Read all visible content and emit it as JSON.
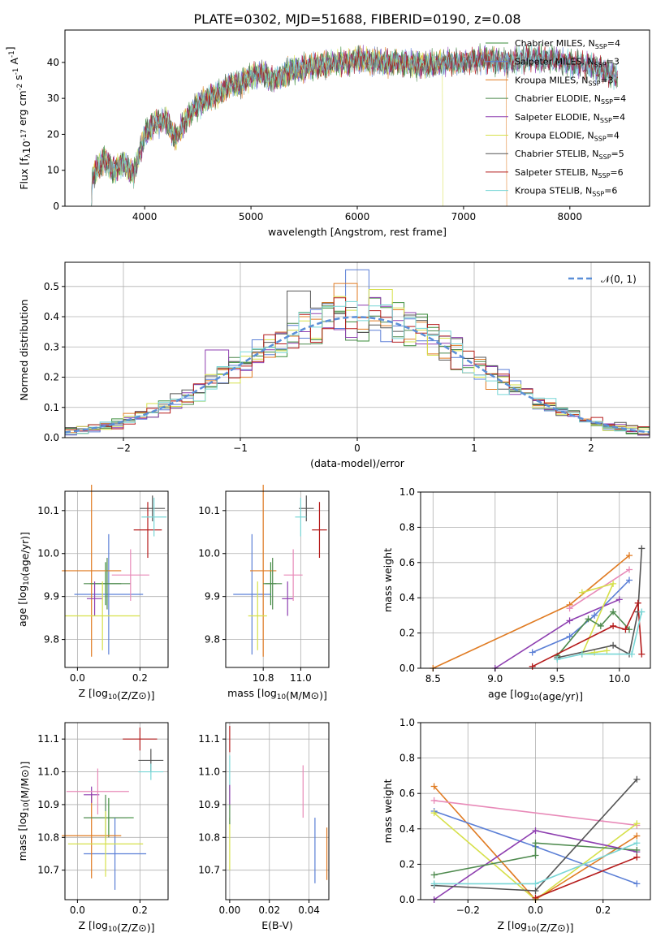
{
  "figure_title": "PLATE=0302, MJD=51688, FIBERID=0190, z=0.08",
  "colors": {
    "Chabrier MILES": "#3a8c3a",
    "Salpeter MILES": "#5b7fd6",
    "Kroupa MILES": "#e07b22",
    "Chabrier ELODIE": "#4e8a4e",
    "Salpeter ELODIE": "#8e3fb0",
    "Kroupa ELODIE": "#d6e04a",
    "Chabrier STELIB": "#555555",
    "Salpeter STELIB": "#b51b1b",
    "Kroupa STELIB": "#78d6d6",
    "gaussian": "#5b8fd8"
  },
  "chart_data": [
    {
      "id": "spectrum",
      "type": "line",
      "xlabel": "wavelength [Angstrom, rest frame]",
      "ylabel": "Flux [f_λ10^-17 erg cm^-2 s^-1 A^-1]",
      "xlim": [
        3250,
        8750
      ],
      "ylim": [
        0,
        49
      ],
      "xticks": [
        4000,
        5000,
        6000,
        7000,
        8000
      ],
      "yticks": [
        0,
        10,
        20,
        30,
        40
      ],
      "grid": false,
      "legend_position": "right",
      "x_range_data": [
        3500,
        8450
      ],
      "anchors": [
        [
          3500,
          8
        ],
        [
          3620,
          13
        ],
        [
          3700,
          10
        ],
        [
          3800,
          12
        ],
        [
          3900,
          9
        ],
        [
          4000,
          20
        ],
        [
          4100,
          23
        ],
        [
          4200,
          24
        ],
        [
          4300,
          19
        ],
        [
          4400,
          25
        ],
        [
          4500,
          28
        ],
        [
          4600,
          30
        ],
        [
          4700,
          31
        ],
        [
          4800,
          34
        ],
        [
          4900,
          34
        ],
        [
          5000,
          36
        ],
        [
          5100,
          37
        ],
        [
          5200,
          35
        ],
        [
          5400,
          38
        ],
        [
          5600,
          39
        ],
        [
          5800,
          40
        ],
        [
          5900,
          40
        ],
        [
          6000,
          41
        ],
        [
          6200,
          40
        ],
        [
          6400,
          40
        ],
        [
          6600,
          39
        ],
        [
          6800,
          40
        ],
        [
          7000,
          40
        ],
        [
          7200,
          41
        ],
        [
          7400,
          40
        ],
        [
          7600,
          41
        ],
        [
          7800,
          41
        ],
        [
          8000,
          40
        ],
        [
          8200,
          39
        ],
        [
          8450,
          36
        ]
      ],
      "series": [
        {
          "name": "Chabrier MILES",
          "name_suffix": "=4"
        },
        {
          "name": "Salpeter MILES",
          "name_suffix": "=3"
        },
        {
          "name": "Kroupa MILES",
          "name_suffix": "=3",
          "drop_at": 7400
        },
        {
          "name": "Chabrier ELODIE",
          "name_suffix": "=4"
        },
        {
          "name": "Salpeter ELODIE",
          "name_suffix": "=4"
        },
        {
          "name": "Kroupa ELODIE",
          "name_suffix": "=4",
          "drop_at": 6800
        },
        {
          "name": "Chabrier STELIB",
          "name_suffix": "=5"
        },
        {
          "name": "Salpeter STELIB",
          "name_suffix": "=6"
        },
        {
          "name": "Kroupa STELIB",
          "name_suffix": "=6"
        }
      ],
      "legend_sub": "SSP"
    },
    {
      "id": "residuals",
      "type": "histogram",
      "xlabel": "(data-model)/error",
      "ylabel": "Normed distribution",
      "xlim": [
        -2.5,
        2.5
      ],
      "ylim": [
        0,
        0.58
      ],
      "xticks": [
        -2,
        -1,
        0,
        1,
        2
      ],
      "yticks": [
        0.0,
        0.1,
        0.2,
        0.3,
        0.4,
        0.5
      ],
      "grid": true,
      "legend_position": "top-right",
      "gaussian_label": "𝒩(0, 1)",
      "bin_width": 0.1,
      "bin_start": -2.5,
      "histograms": [
        {
          "series": "Chabrier MILES",
          "seed": 3
        },
        {
          "series": "Salpeter MILES",
          "seed": 7,
          "peak": [
            0,
            0.555
          ]
        },
        {
          "series": "Kroupa MILES",
          "seed": 11,
          "peak": [
            -0.1,
            0.51
          ]
        },
        {
          "series": "Chabrier ELODIE",
          "seed": 13
        },
        {
          "series": "Salpeter ELODIE",
          "seed": 17,
          "peak": [
            -1.2,
            0.29
          ]
        },
        {
          "series": "Kroupa ELODIE",
          "seed": 19,
          "peak": [
            0.2,
            0.49
          ]
        },
        {
          "series": "Chabrier STELIB",
          "seed": 23,
          "peak": [
            -0.5,
            0.485
          ]
        },
        {
          "series": "Salpeter STELIB",
          "seed": 29
        },
        {
          "series": "Kroupa STELIB",
          "seed": 31
        }
      ]
    },
    {
      "id": "age_vs_Z",
      "type": "errorbar",
      "xlabel": "Z [log10(Z/Z⊙)]",
      "ylabel": "age  [log10(age/yr)]",
      "xlim": [
        -0.04,
        0.29
      ],
      "ylim": [
        9.735,
        10.145
      ],
      "xticks": [
        0.0,
        0.2
      ],
      "yticks": [
        9.8,
        9.9,
        10.0,
        10.1
      ],
      "grid": true,
      "points": [
        {
          "series": "Chabrier MILES",
          "x": 0.09,
          "y": 9.93,
          "xerr": 0.05,
          "yerr": 0.05
        },
        {
          "series": "Salpeter MILES",
          "x": 0.1,
          "y": 9.905,
          "xerr": 0.11,
          "yerr": 0.14
        },
        {
          "series": "Kroupa MILES",
          "x": 0.045,
          "y": 9.96,
          "xerr": 0.095,
          "yerr": 0.2
        },
        {
          "series": "Chabrier ELODIE",
          "x": 0.095,
          "y": 9.93,
          "xerr": 0.075,
          "yerr": 0.06
        },
        {
          "series": "Salpeter ELODIE",
          "x": 0.055,
          "y": 9.895,
          "xerr": 0.025,
          "yerr": 0.04
        },
        {
          "series": "Kroupa ELODIE",
          "x": 0.08,
          "y": 9.855,
          "xerr": 0.12,
          "yerr": 0.08
        },
        {
          "series": "Chabrier STELIB",
          "x": 0.24,
          "y": 10.105,
          "xerr": 0.04,
          "yerr": 0.03
        },
        {
          "series": "Salpeter STELIB",
          "x": 0.225,
          "y": 10.055,
          "xerr": 0.045,
          "yerr": 0.065
        },
        {
          "series": "Kroupa STELIB",
          "x": 0.245,
          "y": 10.085,
          "xerr": 0.04,
          "yerr": 0.045
        },
        {
          "series": "Pink",
          "x": 0.17,
          "y": 9.95,
          "xerr": 0.06,
          "yerr": 0.06
        }
      ]
    },
    {
      "id": "age_vs_mass",
      "type": "errorbar",
      "xlabel": "mass [log10(M/M⊙)]",
      "xlim": [
        10.6,
        11.15
      ],
      "ylim": [
        9.735,
        10.145
      ],
      "xticks": [
        10.8,
        11.0
      ],
      "yticks": [
        9.8,
        9.9,
        10.0,
        10.1
      ],
      "grid": true,
      "points": [
        {
          "series": "Chabrier MILES",
          "x": 10.84,
          "y": 9.93,
          "xerr": 0.03,
          "yerr": 0.05
        },
        {
          "series": "Salpeter MILES",
          "x": 10.74,
          "y": 9.905,
          "xerr": 0.1,
          "yerr": 0.14
        },
        {
          "series": "Kroupa MILES",
          "x": 10.8,
          "y": 9.96,
          "xerr": 0.07,
          "yerr": 0.2
        },
        {
          "series": "Chabrier ELODIE",
          "x": 10.85,
          "y": 9.93,
          "xerr": 0.05,
          "yerr": 0.06
        },
        {
          "series": "Salpeter ELODIE",
          "x": 10.93,
          "y": 9.895,
          "xerr": 0.03,
          "yerr": 0.04
        },
        {
          "series": "Kroupa ELODIE",
          "x": 10.77,
          "y": 9.855,
          "xerr": 0.05,
          "yerr": 0.08
        },
        {
          "series": "Chabrier STELIB",
          "x": 11.03,
          "y": 10.105,
          "xerr": 0.04,
          "yerr": 0.03
        },
        {
          "series": "Salpeter STELIB",
          "x": 11.1,
          "y": 10.055,
          "xerr": 0.04,
          "yerr": 0.065
        },
        {
          "series": "Kroupa STELIB",
          "x": 11.0,
          "y": 10.085,
          "xerr": 0.03,
          "yerr": 0.045
        },
        {
          "series": "Pink",
          "x": 10.96,
          "y": 9.95,
          "xerr": 0.05,
          "yerr": 0.06
        }
      ]
    },
    {
      "id": "weight_vs_age",
      "type": "line",
      "xlabel": "age  [log10(age/yr)]",
      "ylabel": "mass weight",
      "xlim": [
        8.4,
        10.25
      ],
      "ylim": [
        0.0,
        1.0
      ],
      "xticks": [
        8.5,
        9.0,
        9.5,
        10.0
      ],
      "yticks": [
        0.0,
        0.2,
        0.4,
        0.6,
        0.8,
        1.0
      ],
      "grid": true,
      "series": [
        {
          "series": "Kroupa MILES",
          "x": [
            8.5,
            9.6,
            10.08
          ],
          "y": [
            0.0,
            0.36,
            0.64
          ]
        },
        {
          "series": "Salpeter MILES",
          "x": [
            9.3,
            9.6,
            9.8,
            10.08
          ],
          "y": [
            0.09,
            0.18,
            0.3,
            0.5
          ]
        },
        {
          "series": "Salpeter ELODIE",
          "x": [
            9.0,
            9.6,
            10.0
          ],
          "y": [
            0.0,
            0.27,
            0.39
          ]
        },
        {
          "series": "Pink",
          "x": [
            9.6,
            10.08
          ],
          "y": [
            0.34,
            0.56
          ]
        },
        {
          "series": "Kroupa ELODIE",
          "x": [
            9.7,
            9.95,
            9.7,
            9.8,
            9.9
          ],
          "y": [
            0.43,
            0.48,
            0.08,
            0.09,
            0.1
          ]
        },
        {
          "series": "Chabrier ELODIE",
          "x": [
            9.5,
            9.75,
            9.85,
            9.95,
            10.08
          ],
          "y": [
            0.07,
            0.28,
            0.24,
            0.32,
            0.22
          ]
        },
        {
          "series": "Chabrier STELIB",
          "x": [
            9.5,
            9.95,
            10.08,
            10.15,
            10.18
          ],
          "y": [
            0.06,
            0.13,
            0.08,
            0.32,
            0.68
          ]
        },
        {
          "series": "Salpeter STELIB",
          "x": [
            9.3,
            9.95,
            10.05,
            10.15,
            10.18
          ],
          "y": [
            0.01,
            0.24,
            0.22,
            0.37,
            0.08
          ]
        },
        {
          "series": "Kroupa STELIB",
          "x": [
            9.5,
            9.7,
            10.1,
            10.18
          ],
          "y": [
            0.05,
            0.08,
            0.08,
            0.32
          ]
        }
      ]
    },
    {
      "id": "mass_vs_Z",
      "type": "errorbar",
      "xlabel": "Z [log10(Z/Z⊙)]",
      "ylabel": "mass [log10(M/M⊙)]",
      "xlim": [
        -0.04,
        0.29
      ],
      "ylim": [
        10.61,
        11.15
      ],
      "xticks": [
        0.0,
        0.2
      ],
      "yticks": [
        10.7,
        10.8,
        10.9,
        11.0,
        11.1
      ],
      "grid": true,
      "points": [
        {
          "series": "Chabrier MILES",
          "x": 0.1,
          "y": 10.86,
          "xerr": 0.08,
          "yerr": 0.06
        },
        {
          "series": "Salpeter MILES",
          "x": 0.12,
          "y": 10.75,
          "xerr": 0.1,
          "yerr": 0.11
        },
        {
          "series": "Kroupa MILES",
          "x": 0.045,
          "y": 10.805,
          "xerr": 0.095,
          "yerr": 0.13
        },
        {
          "series": "Chabrier ELODIE",
          "x": 0.09,
          "y": 10.86,
          "xerr": 0.07,
          "yerr": 0.07
        },
        {
          "series": "Salpeter ELODIE",
          "x": 0.045,
          "y": 10.93,
          "xerr": 0.025,
          "yerr": 0.025
        },
        {
          "series": "Kroupa ELODIE",
          "x": 0.09,
          "y": 10.78,
          "xerr": 0.12,
          "yerr": 0.1
        },
        {
          "series": "Chabrier STELIB",
          "x": 0.235,
          "y": 11.035,
          "xerr": 0.04,
          "yerr": 0.035
        },
        {
          "series": "Salpeter STELIB",
          "x": 0.2,
          "y": 11.1,
          "xerr": 0.055,
          "yerr": 0.035
        },
        {
          "series": "Kroupa STELIB",
          "x": 0.235,
          "y": 11.0,
          "xerr": 0.04,
          "yerr": 0.025
        },
        {
          "series": "Pink",
          "x": 0.065,
          "y": 10.94,
          "xerr": 0.1,
          "yerr": 0.07
        }
      ]
    },
    {
      "id": "mass_vs_ebv",
      "type": "errorbar",
      "xlabel": "E(B-V)",
      "xlim": [
        -0.002,
        0.05
      ],
      "ylim": [
        10.61,
        11.15
      ],
      "xticks": [
        0.0,
        0.02,
        0.04
      ],
      "yticks": [
        10.7,
        10.8,
        10.9,
        11.0,
        11.1
      ],
      "grid": true,
      "points": [
        {
          "series": "Kroupa MILES",
          "x": 0.049,
          "y": 10.75,
          "xerr": 0,
          "yerr": 0.08
        },
        {
          "series": "Salpeter MILES",
          "x": 0.043,
          "y": 10.76,
          "xerr": 0,
          "yerr": 0.1
        },
        {
          "series": "Pink",
          "x": 0.037,
          "y": 10.94,
          "xerr": 0,
          "yerr": 0.08
        },
        {
          "series": "Kroupa ELODIE",
          "x": 0.0,
          "y": 10.78,
          "xerr": 0,
          "yerr": 0.08
        },
        {
          "series": "Chabrier ELODIE",
          "x": 0.0,
          "y": 10.9,
          "xerr": 0,
          "yerr": 0.06
        },
        {
          "series": "Kroupa STELIB",
          "x": 0.0,
          "y": 11.0,
          "xerr": 0,
          "yerr": 0.05
        },
        {
          "series": "Salpeter STELIB",
          "x": 0.0,
          "y": 11.1,
          "xerr": 0,
          "yerr": 0.04
        },
        {
          "series": "Salpeter ELODIE",
          "x": 0.0,
          "y": 10.93,
          "xerr": 0,
          "yerr": 0.03
        }
      ]
    },
    {
      "id": "weight_vs_Z",
      "type": "line",
      "xlabel": "Z [log10(Z/Z⊙)]",
      "ylabel": "mass weight",
      "xlim": [
        -0.34,
        0.34
      ],
      "ylim": [
        0.0,
        1.0
      ],
      "xticks": [
        -0.2,
        0.0,
        0.2
      ],
      "yticks": [
        0.0,
        0.2,
        0.4,
        0.6,
        0.8,
        1.0
      ],
      "grid": true,
      "series": [
        {
          "series": "Kroupa MILES",
          "x": [
            -0.3,
            0.0,
            0.3
          ],
          "y": [
            0.64,
            0.0,
            0.36
          ]
        },
        {
          "series": "Pink",
          "x": [
            -0.3,
            0.3
          ],
          "y": [
            0.56,
            0.42
          ]
        },
        {
          "series": "Salpeter MILES",
          "x": [
            -0.3,
            0.0,
            0.3
          ],
          "y": [
            0.5,
            0.3,
            0.09
          ]
        },
        {
          "series": "Kroupa ELODIE",
          "x": [
            -0.3,
            0.0,
            0.3
          ],
          "y": [
            0.49,
            0.0,
            0.43
          ]
        },
        {
          "series": "Salpeter ELODIE",
          "x": [
            -0.3,
            0.0,
            0.3
          ],
          "y": [
            0.0,
            0.39,
            0.27
          ]
        },
        {
          "series": "Chabrier ELODIE",
          "x": [
            -0.3,
            0.0,
            0.0,
            0.3
          ],
          "y": [
            0.14,
            0.25,
            0.32,
            0.28
          ]
        },
        {
          "series": "Chabrier STELIB",
          "x": [
            -0.3,
            0.0,
            0.3
          ],
          "y": [
            0.08,
            0.05,
            0.68
          ]
        },
        {
          "series": "Salpeter STELIB",
          "x": [
            0.0,
            0.3
          ],
          "y": [
            0.01,
            0.24
          ]
        },
        {
          "series": "Kroupa STELIB",
          "x": [
            -0.3,
            0.0,
            0.3
          ],
          "y": [
            0.09,
            0.09,
            0.32
          ]
        }
      ]
    }
  ]
}
